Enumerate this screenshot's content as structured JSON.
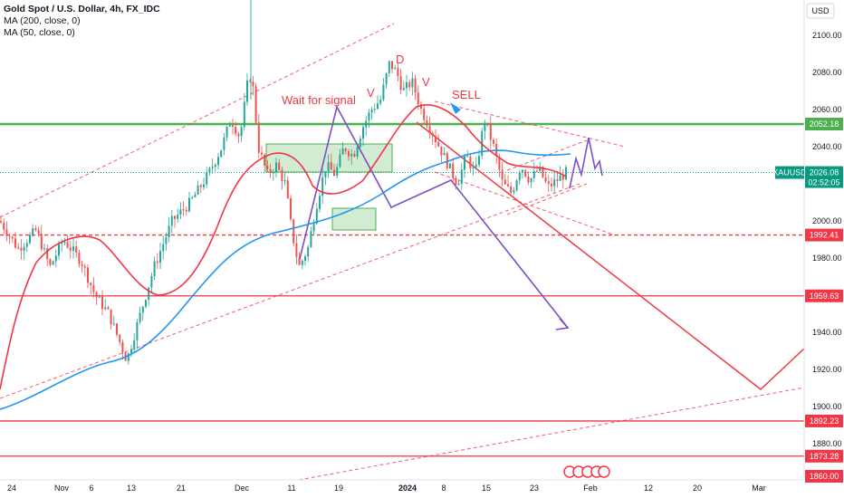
{
  "legend": {
    "title": "Gold Spot / U.S. Dollar, 4h, FX_IDC",
    "ma200": "MA (200, close, 0)",
    "ma50": "MA (50, close, 0)"
  },
  "currency": "USD",
  "colors": {
    "red": "#f23645",
    "green": "#4caf50",
    "blue": "#2196f3",
    "purple": "#7b4fc6",
    "up": "#26a69a",
    "down": "#ef5350",
    "teal_tag": "#089981"
  },
  "chart_data": {
    "type": "candlestick",
    "y_axis_ticks": [
      1880,
      1900,
      1920,
      1940,
      1960,
      1980,
      2000,
      2020,
      2040,
      2060,
      2080,
      2100
    ],
    "x_axis_ticks": [
      "24",
      "Nov",
      "6",
      "13",
      "21",
      "Dec",
      "11",
      "19",
      "2024",
      "8",
      "15",
      "23",
      "Feb",
      "12",
      "20",
      "Mar"
    ],
    "horizontal_levels": [
      {
        "value": 2052.18,
        "label": "2052.18",
        "style": "solid",
        "color": "green"
      },
      {
        "value": 1992.41,
        "label": "1992.41",
        "style": "dashed",
        "color": "red"
      },
      {
        "value": 1959.63,
        "label": "1959.63",
        "style": "solid",
        "color": "red"
      },
      {
        "value": 1892.23,
        "label": "1892.23",
        "style": "solid",
        "color": "red"
      },
      {
        "value": 1873.28,
        "label": "1873.28",
        "style": "solid",
        "color": "red"
      }
    ],
    "current_price": {
      "symbol": "XAUUSD",
      "value": 2026.08,
      "label": "2026.08",
      "countdown": "02:52:05"
    },
    "bottom_tag": "1860.00",
    "annotations": [
      {
        "text": "Wait for signal",
        "color": "red"
      },
      {
        "text": "V",
        "color": "red"
      },
      {
        "text": "D",
        "color": "red"
      },
      {
        "text": "V",
        "color": "red"
      },
      {
        "text": "SELL",
        "color": "red"
      }
    ],
    "y_range": [
      1856,
      2112
    ],
    "grid": false
  }
}
